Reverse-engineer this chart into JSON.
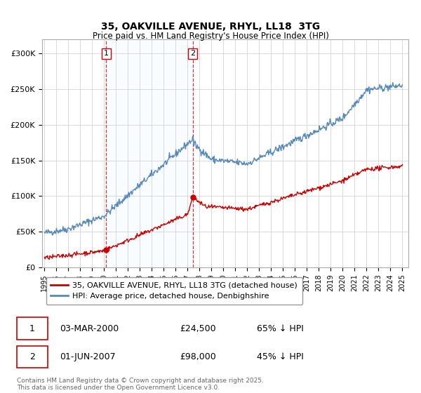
{
  "title": "35, OAKVILLE AVENUE, RHYL, LL18  3TG",
  "subtitle": "Price paid vs. HM Land Registry's House Price Index (HPI)",
  "ylim": [
    0,
    320000
  ],
  "yticks": [
    0,
    50000,
    100000,
    150000,
    200000,
    250000,
    300000
  ],
  "ytick_labels": [
    "£0",
    "£50K",
    "£100K",
    "£150K",
    "£200K",
    "£250K",
    "£300K"
  ],
  "legend_entries": [
    "35, OAKVILLE AVENUE, RHYL, LL18 3TG (detached house)",
    "HPI: Average price, detached house, Denbighshire"
  ],
  "legend_colors": [
    "#cc0000",
    "#5588bb"
  ],
  "transaction1": {
    "date_num": 2000.17,
    "price": 24500,
    "label": "1",
    "text": "03-MAR-2000",
    "price_text": "£24,500",
    "hpi_text": "65% ↓ HPI"
  },
  "transaction2": {
    "date_num": 2007.42,
    "price": 98000,
    "label": "2",
    "text": "01-JUN-2007",
    "price_text": "£98,000",
    "hpi_text": "45% ↓ HPI"
  },
  "copyright_text": "Contains HM Land Registry data © Crown copyright and database right 2025.\nThis data is licensed under the Open Government Licence v3.0.",
  "background_color": "#ffffff",
  "grid_color": "#cccccc",
  "shade_color": "#ddeeff",
  "red_line_color": "#cc0000",
  "blue_line_color": "#5588bb"
}
